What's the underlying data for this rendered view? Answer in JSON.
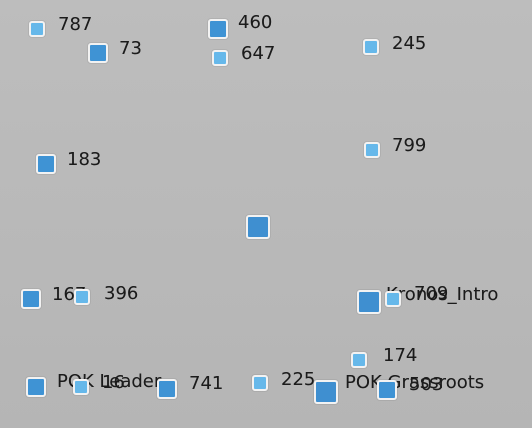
{
  "graph": {
    "nodes": [
      {
        "id": "n787",
        "label": "787"
      },
      {
        "id": "n73",
        "label": "73"
      },
      {
        "id": "n460",
        "label": "460"
      },
      {
        "id": "n647",
        "label": "647"
      },
      {
        "id": "n245",
        "label": "245"
      },
      {
        "id": "n183",
        "label": "183"
      },
      {
        "id": "n799",
        "label": "799"
      },
      {
        "id": "n_center",
        "label": ""
      },
      {
        "id": "n167",
        "label": "167"
      },
      {
        "id": "n396",
        "label": "396"
      },
      {
        "id": "n_kronos_intro",
        "label": "Kronos_Intro"
      },
      {
        "id": "n709",
        "label": "709"
      },
      {
        "id": "n174",
        "label": "174"
      },
      {
        "id": "n_pok_leader",
        "label": "POK Leader"
      },
      {
        "id": "n16",
        "label": "16"
      },
      {
        "id": "n741",
        "label": "741"
      },
      {
        "id": "n225",
        "label": "225"
      },
      {
        "id": "n_pok_grassroots",
        "label": "POK Grassroots"
      },
      {
        "id": "n503",
        "label": "503"
      }
    ]
  }
}
